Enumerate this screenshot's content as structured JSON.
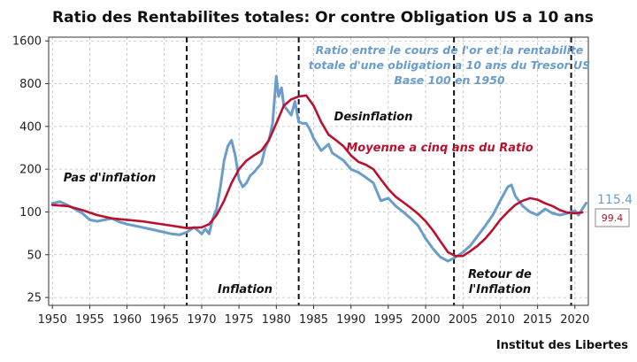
{
  "chart_data": {
    "type": "line",
    "title": "Ratio des Rentabilites totales: Or contre Obligation US a 10 ans",
    "subtitle_lines": [
      "Ratio entre le cours de l'or et la rentabilite",
      "totale d'une obligation a 10 ans du Tresor US",
      "Base 100 en 1950"
    ],
    "xlim": [
      1949.5,
      2021.8
    ],
    "ylim": [
      22,
      1700
    ],
    "yscale": "log",
    "x_ticks": [
      1950,
      1955,
      1960,
      1965,
      1970,
      1975,
      1980,
      1985,
      1990,
      1995,
      2000,
      2005,
      2010,
      2015,
      2020
    ],
    "y_ticks": [
      25,
      50,
      100,
      200,
      400,
      800,
      1600
    ],
    "grid": true,
    "vlines": [
      1968,
      1983,
      2003.8,
      2019.5
    ],
    "series": [
      {
        "name": "Ratio entre le cours de l'or et la rentabilite totale d'une obligation a 10 ans du Tresor US",
        "color": "#6a9ccc",
        "x": [
          1950,
          1951,
          1952,
          1953,
          1954,
          1955,
          1956,
          1957,
          1958,
          1959,
          1960,
          1961,
          1962,
          1963,
          1964,
          1965,
          1966,
          1967,
          1968,
          1969,
          1970,
          1970.5,
          1971,
          1971.5,
          1972,
          1972.5,
          1973,
          1973.5,
          1974,
          1974.5,
          1975,
          1975.5,
          1976,
          1976.5,
          1977,
          1978,
          1978.5,
          1979,
          1979.5,
          1980,
          1980.3,
          1980.7,
          1981,
          1981.5,
          1982,
          1982.5,
          1983,
          1983.5,
          1984,
          1984.5,
          1985,
          1986,
          1987,
          1987.5,
          1988,
          1989,
          1990,
          1991,
          1992,
          1993,
          1994,
          1995,
          1996,
          1997,
          1998,
          1999,
          2000,
          2001,
          2002,
          2003,
          2004,
          2005,
          2006,
          2007,
          2008,
          2009,
          2010,
          2011,
          2011.5,
          2012,
          2013,
          2014,
          2015,
          2016,
          2017,
          2018,
          2019,
          2020,
          2020.5,
          2021,
          2021.5
        ],
        "y": [
          115,
          118,
          112,
          105,
          98,
          88,
          86,
          88,
          90,
          85,
          82,
          80,
          78,
          76,
          74,
          72,
          70,
          69,
          72,
          78,
          70,
          76,
          70,
          90,
          105,
          150,
          230,
          290,
          320,
          250,
          170,
          150,
          160,
          180,
          190,
          220,
          280,
          320,
          420,
          900,
          650,
          750,
          560,
          520,
          480,
          600,
          430,
          420,
          420,
          380,
          330,
          270,
          300,
          260,
          250,
          230,
          200,
          190,
          175,
          160,
          120,
          125,
          110,
          100,
          90,
          80,
          65,
          55,
          48,
          45,
          48,
          52,
          58,
          68,
          80,
          95,
          120,
          150,
          155,
          130,
          110,
          100,
          95,
          105,
          98,
          95,
          98,
          102,
          95,
          105,
          115.4
        ]
      },
      {
        "name": "Moyenne a cinq ans du Ratio",
        "color": "#b8122e",
        "x": [
          1950,
          1952,
          1954,
          1956,
          1958,
          1960,
          1962,
          1964,
          1966,
          1968,
          1970,
          1971,
          1972,
          1973,
          1974,
          1975,
          1976,
          1977,
          1978,
          1979,
          1980,
          1981,
          1982,
          1983,
          1984,
          1985,
          1986,
          1987,
          1988,
          1989,
          1990,
          1991,
          1992,
          1993,
          1994,
          1995,
          1996,
          1997,
          1998,
          1999,
          2000,
          2001,
          2002,
          2003,
          2004,
          2005,
          2006,
          2007,
          2008,
          2009,
          2010,
          2011,
          2012,
          2013,
          2014,
          2015,
          2016,
          2017,
          2018,
          2019,
          2020,
          2021
        ],
        "y": [
          112,
          110,
          103,
          95,
          90,
          88,
          86,
          83,
          80,
          77,
          78,
          82,
          95,
          120,
          160,
          200,
          230,
          250,
          270,
          320,
          420,
          560,
          620,
          650,
          660,
          560,
          430,
          350,
          320,
          290,
          250,
          225,
          215,
          200,
          170,
          145,
          128,
          117,
          107,
          97,
          86,
          74,
          62,
          52,
          49,
          49,
          53,
          58,
          65,
          75,
          88,
          100,
          112,
          120,
          125,
          122,
          115,
          110,
          103,
          99,
          98,
          99.4
        ]
      }
    ],
    "end_labels": {
      "ratio": "115.4",
      "moyenne": "99.4"
    },
    "annotations": {
      "pas_inflation": "Pas d'inflation",
      "inflation": "Inflation",
      "desinflation": "Desinflation",
      "moyenne_label": "Moyenne a cinq ans du Ratio",
      "retour_line1": "Retour de",
      "retour_line2": "l'Inflation"
    },
    "source": "Institut des Libertes"
  }
}
